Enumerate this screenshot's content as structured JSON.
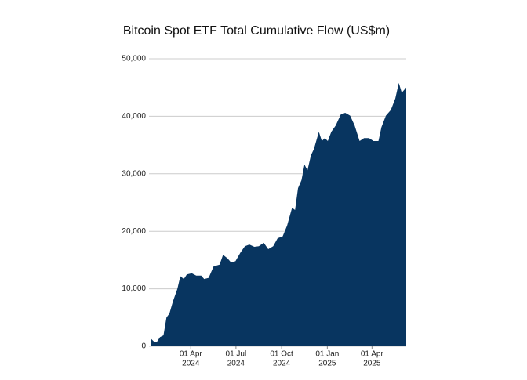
{
  "chart_data": {
    "type": "area",
    "title": "Bitcoin Spot ETF Total Cumulative Flow (US$m)",
    "color": "#083560",
    "grid": true,
    "x": [
      "2024-01-11",
      "2024-01-18",
      "2024-01-24",
      "2024-01-30",
      "2024-02-06",
      "2024-02-12",
      "2024-02-18",
      "2024-02-25",
      "2024-03-05",
      "2024-03-11",
      "2024-03-18",
      "2024-03-24",
      "2024-04-03",
      "2024-04-12",
      "2024-04-22",
      "2024-04-28",
      "2024-05-07",
      "2024-05-17",
      "2024-05-29",
      "2024-06-05",
      "2024-06-14",
      "2024-06-21",
      "2024-06-30",
      "2024-07-10",
      "2024-07-19",
      "2024-07-28",
      "2024-08-07",
      "2024-08-16",
      "2024-08-26",
      "2024-09-04",
      "2024-09-14",
      "2024-09-23",
      "2024-10-03",
      "2024-10-12",
      "2024-10-22",
      "2024-10-28",
      "2024-11-03",
      "2024-11-10",
      "2024-11-16",
      "2024-11-22",
      "2024-11-29",
      "2024-12-05",
      "2024-12-15",
      "2024-12-21",
      "2024-12-27",
      "2025-01-02",
      "2025-01-09",
      "2025-01-18",
      "2025-01-28",
      "2025-02-06",
      "2025-02-16",
      "2025-02-25",
      "2025-03-07",
      "2025-03-16",
      "2025-03-26",
      "2025-04-04",
      "2025-04-14",
      "2025-04-20",
      "2025-04-29",
      "2025-05-09",
      "2025-05-18",
      "2025-05-25",
      "2025-05-31",
      "2025-06-09"
    ],
    "values": [
      1400,
      800,
      800,
      1600,
      1900,
      5000,
      5700,
      7800,
      10000,
      12200,
      11700,
      12500,
      12700,
      12300,
      12300,
      11700,
      11900,
      13900,
      14200,
      15900,
      15300,
      14600,
      14800,
      16300,
      17400,
      17700,
      17300,
      17400,
      18000,
      16900,
      17400,
      18800,
      19100,
      21000,
      24100,
      23700,
      27500,
      28900,
      31600,
      30600,
      33200,
      34300,
      37300,
      35700,
      36200,
      35700,
      37300,
      38400,
      40300,
      40600,
      40100,
      38400,
      35700,
      36200,
      36200,
      35700,
      35700,
      38100,
      40100,
      41100,
      43100,
      45800,
      44100,
      45000
    ],
    "xlim": [
      "2024-01-11",
      "2025-06-09"
    ],
    "xticks": [
      {
        "value": "2024-04-01",
        "label": [
          "01 Apr",
          "2024"
        ]
      },
      {
        "value": "2024-07-01",
        "label": [
          "01 Jul",
          "2024"
        ]
      },
      {
        "value": "2024-10-01",
        "label": [
          "01 Oct",
          "2024"
        ]
      },
      {
        "value": "2025-01-01",
        "label": [
          "01 Jan",
          "2025"
        ]
      },
      {
        "value": "2025-04-01",
        "label": [
          "01 Apr",
          "2025"
        ]
      }
    ],
    "ylim": [
      0,
      50000
    ],
    "yticks": [
      0,
      {
        "value": 10000,
        "label": "10,000"
      },
      {
        "value": 20000,
        "label": "20,000"
      },
      {
        "value": 30000,
        "label": "30,000"
      },
      {
        "value": 40000,
        "label": "40,000"
      },
      {
        "value": 50000,
        "label": "50,000"
      }
    ]
  }
}
